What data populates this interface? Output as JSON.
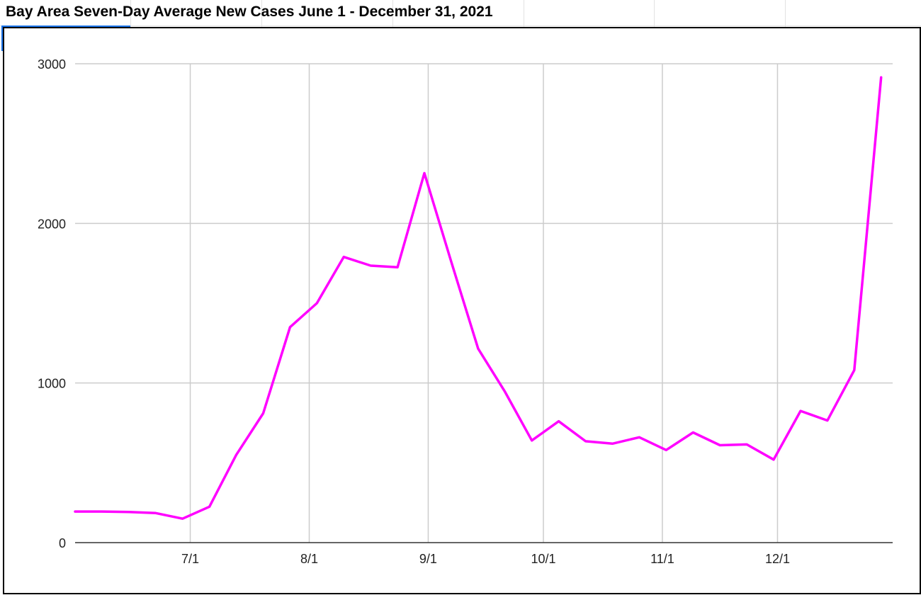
{
  "chart_data": {
    "type": "line",
    "title": "Bay Area Seven-Day Average New Cases June 1 - December 31, 2021",
    "xlabel": "",
    "ylabel": "",
    "x_range": [
      "2021-06-01",
      "2021-12-31"
    ],
    "ylim": [
      0,
      3000
    ],
    "yticks": [
      0,
      1000,
      2000,
      3000
    ],
    "xticks": [
      {
        "date": "2021-07-01",
        "label": "7/1"
      },
      {
        "date": "2021-08-01",
        "label": "8/1"
      },
      {
        "date": "2021-09-01",
        "label": "9/1"
      },
      {
        "date": "2021-10-01",
        "label": "10/1"
      },
      {
        "date": "2021-11-01",
        "label": "11/1"
      },
      {
        "date": "2021-12-01",
        "label": "12/1"
      }
    ],
    "grid": true,
    "legend": "none",
    "series": [
      {
        "color": "#ff00ff",
        "points": [
          {
            "x": "2021-06-01",
            "y": 195
          },
          {
            "x": "2021-06-08",
            "y": 195
          },
          {
            "x": "2021-06-15",
            "y": 192
          },
          {
            "x": "2021-06-22",
            "y": 185
          },
          {
            "x": "2021-06-29",
            "y": 150
          },
          {
            "x": "2021-07-06",
            "y": 225
          },
          {
            "x": "2021-07-13",
            "y": 550
          },
          {
            "x": "2021-07-20",
            "y": 810
          },
          {
            "x": "2021-07-27",
            "y": 1350
          },
          {
            "x": "2021-08-03",
            "y": 1500
          },
          {
            "x": "2021-08-10",
            "y": 1790
          },
          {
            "x": "2021-08-17",
            "y": 1735
          },
          {
            "x": "2021-08-24",
            "y": 1725
          },
          {
            "x": "2021-08-31",
            "y": 2315
          },
          {
            "x": "2021-09-07",
            "y": 1760
          },
          {
            "x": "2021-09-14",
            "y": 1215
          },
          {
            "x": "2021-09-21",
            "y": 945
          },
          {
            "x": "2021-09-28",
            "y": 640
          },
          {
            "x": "2021-10-05",
            "y": 760
          },
          {
            "x": "2021-10-12",
            "y": 635
          },
          {
            "x": "2021-10-19",
            "y": 620
          },
          {
            "x": "2021-10-26",
            "y": 660
          },
          {
            "x": "2021-11-02",
            "y": 580
          },
          {
            "x": "2021-11-09",
            "y": 690
          },
          {
            "x": "2021-11-16",
            "y": 610
          },
          {
            "x": "2021-11-23",
            "y": 615
          },
          {
            "x": "2021-11-30",
            "y": 520
          },
          {
            "x": "2021-12-07",
            "y": 825
          },
          {
            "x": "2021-12-14",
            "y": 765
          },
          {
            "x": "2021-12-21",
            "y": 1080
          },
          {
            "x": "2021-12-28",
            "y": 2915
          }
        ]
      }
    ]
  }
}
